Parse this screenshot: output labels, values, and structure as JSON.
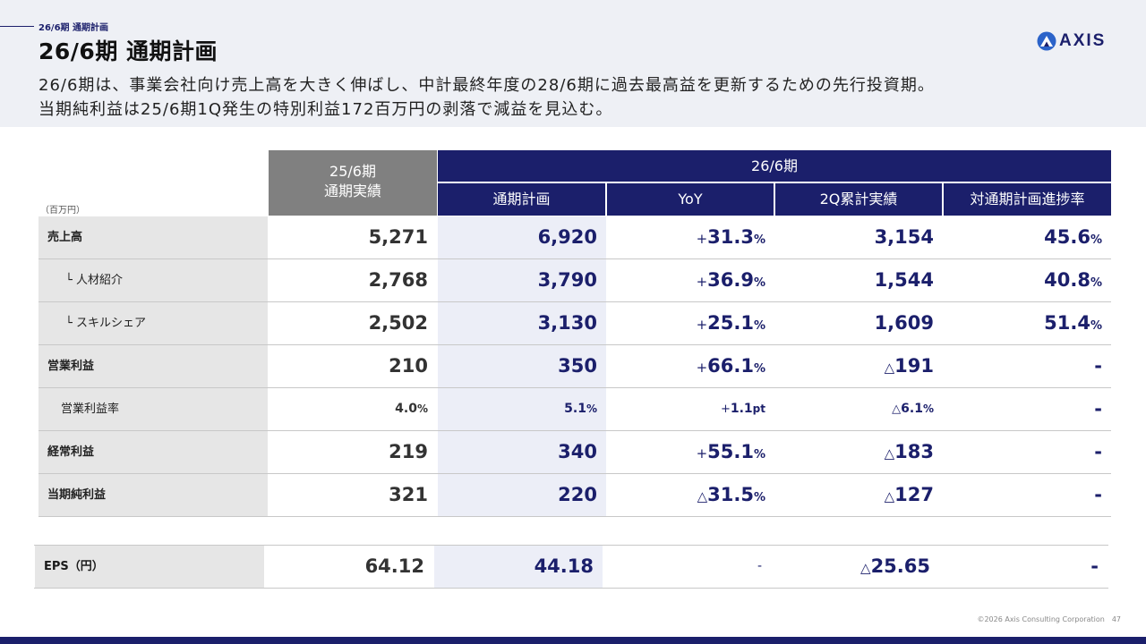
{
  "header": {
    "section_label": "26/6期 通期計画",
    "title": "26/6期 通期計画",
    "lead_line1": "26/6期は、事業会社向け売上高を大きく伸ばし、中計最終年度の28/6期に過去最高益を更新するための先行投資期。",
    "lead_line2": "当期純利益は25/6期1Q発生の特別利益172百万円の剥落で減益を見込む。",
    "logo_text": "AXIS"
  },
  "table": {
    "unit_label": "（百万円）",
    "prev_header_line1": "25/6期",
    "prev_header_line2": "通期実績",
    "current_header": "26/6期",
    "sub_headers": [
      "通期計画",
      "YoY",
      "2Q累計実績",
      "対通期計画進捗率"
    ],
    "rows": [
      {
        "label": "売上高",
        "prev": "5,271",
        "plan": "6,920",
        "yoy_sign": "+",
        "yoy": "31.3",
        "yoy_unit": "%",
        "q2_sign": "",
        "q2": "3,154",
        "prog": "45.6",
        "prog_unit": "%"
      },
      {
        "label": "└ 人材紹介",
        "prev": "2,768",
        "plan": "3,790",
        "yoy_sign": "+",
        "yoy": "36.9",
        "yoy_unit": "%",
        "q2_sign": "",
        "q2": "1,544",
        "prog": "40.8",
        "prog_unit": "%"
      },
      {
        "label": "└ スキルシェア",
        "prev": "2,502",
        "plan": "3,130",
        "yoy_sign": "+",
        "yoy": "25.1",
        "yoy_unit": "%",
        "q2_sign": "",
        "q2": "1,609",
        "prog": "51.4",
        "prog_unit": "%"
      },
      {
        "label": "営業利益",
        "prev": "210",
        "plan": "350",
        "yoy_sign": "+",
        "yoy": "66.1",
        "yoy_unit": "%",
        "q2_sign": "△",
        "q2": "191",
        "prog": "-",
        "prog_unit": ""
      },
      {
        "label": "営業利益率",
        "prev": "4.0",
        "prev_unit": "%",
        "plan": "5.1",
        "plan_unit": "%",
        "yoy_sign": "+",
        "yoy": "1.1",
        "yoy_unit": "pt",
        "q2_sign": "△",
        "q2": "6.1",
        "q2_unit": "%",
        "prog": "-",
        "prog_unit": ""
      },
      {
        "label": "経常利益",
        "prev": "219",
        "plan": "340",
        "yoy_sign": "+",
        "yoy": "55.1",
        "yoy_unit": "%",
        "q2_sign": "△",
        "q2": "183",
        "prog": "-",
        "prog_unit": ""
      },
      {
        "label": "当期純利益",
        "prev": "321",
        "plan": "220",
        "yoy_sign": "△",
        "yoy": "31.5",
        "yoy_unit": "%",
        "q2_sign": "△",
        "q2": "127",
        "prog": "-",
        "prog_unit": ""
      }
    ],
    "eps": {
      "label": "EPS（円）",
      "prev": "64.12",
      "plan": "44.18",
      "yoy": "-",
      "q2_sign": "△",
      "q2": "25.65",
      "prog": "-"
    }
  },
  "footer": {
    "copyright": "©2026 Axis Consulting Corporation",
    "page": "47"
  },
  "colors": {
    "navy": "#1b1f6b",
    "gray_header": "#808080",
    "label_bg": "#e6e6e6",
    "plan_bg": "#eceef7",
    "header_bg": "#eef0f5"
  },
  "icons": {
    "logo": "axis-mountain-logo-icon"
  }
}
